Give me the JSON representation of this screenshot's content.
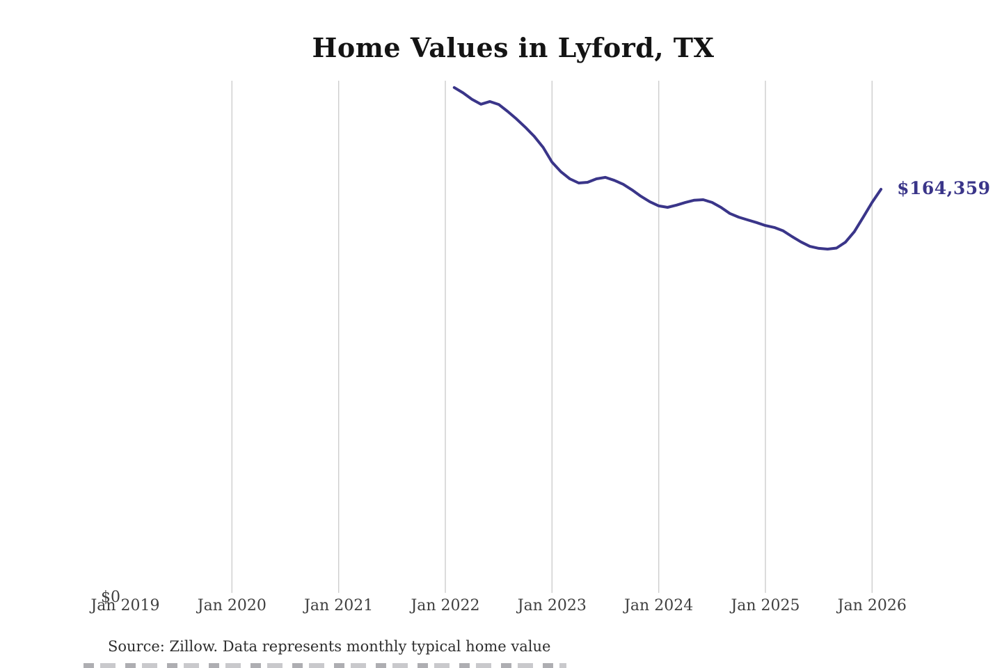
{
  "title": "Home Values in Lyford, TX",
  "source_note": "Source: Zillow. Data represents monthly typical home value",
  "y_axis": {
    "zero_label": "$0"
  },
  "end_label": "$164,359",
  "colors": {
    "line": "#3a3589",
    "grid": "#cdcdcd",
    "title_text": "#141414",
    "axis_text": "#3f3f3f",
    "annotation": "#3a3589"
  },
  "x_axis": {
    "tick_labels": [
      "Jan 2019",
      "Jan 2020",
      "Jan 2021",
      "Jan 2022",
      "Jan 2023",
      "Jan 2024",
      "Jan 2025",
      "Jan 2026"
    ],
    "gridline_years": [
      2020,
      2021,
      2022,
      2023,
      2024,
      2025,
      2026
    ]
  },
  "chart_data": {
    "type": "line",
    "title": "Home Values in Lyford, TX",
    "series_name": "Monthly typical home value (USD)",
    "x": [
      "2022-02",
      "2022-03",
      "2022-04",
      "2022-05",
      "2022-06",
      "2022-07",
      "2022-08",
      "2022-09",
      "2022-10",
      "2022-11",
      "2022-12",
      "2023-01",
      "2023-02",
      "2023-03",
      "2023-04",
      "2023-05",
      "2023-06",
      "2023-07",
      "2023-08",
      "2023-09",
      "2023-10",
      "2023-11",
      "2023-12",
      "2024-01",
      "2024-02",
      "2024-03",
      "2024-04",
      "2024-05",
      "2024-06",
      "2024-07",
      "2024-08",
      "2024-09",
      "2024-10",
      "2024-11",
      "2024-12",
      "2025-01",
      "2025-02",
      "2025-03",
      "2025-04",
      "2025-05",
      "2025-06",
      "2025-07",
      "2025-08",
      "2025-09",
      "2025-10",
      "2025-11",
      "2025-12",
      "2026-01",
      "2026-02"
    ],
    "values": [
      205800,
      203600,
      201000,
      199000,
      200100,
      198900,
      196100,
      193000,
      189600,
      185900,
      181400,
      175400,
      171500,
      168600,
      166900,
      167200,
      168600,
      169200,
      168000,
      166400,
      164100,
      161500,
      159300,
      157600,
      157000,
      157900,
      159000,
      159900,
      160100,
      159000,
      157000,
      154500,
      153000,
      151900,
      150800,
      149600,
      148800,
      147400,
      145100,
      142900,
      141100,
      140300,
      140000,
      140400,
      142800,
      147100,
      153000,
      159000,
      164359
    ],
    "end_annotation": {
      "text": "$164,359",
      "value": 164359
    },
    "x_ticks": [
      "Jan 2019",
      "Jan 2020",
      "Jan 2021",
      "Jan 2022",
      "Jan 2023",
      "Jan 2024",
      "Jan 2025",
      "Jan 2026"
    ],
    "ylim": [
      0,
      208000
    ],
    "grid": "vertical-only",
    "legend": "none"
  }
}
